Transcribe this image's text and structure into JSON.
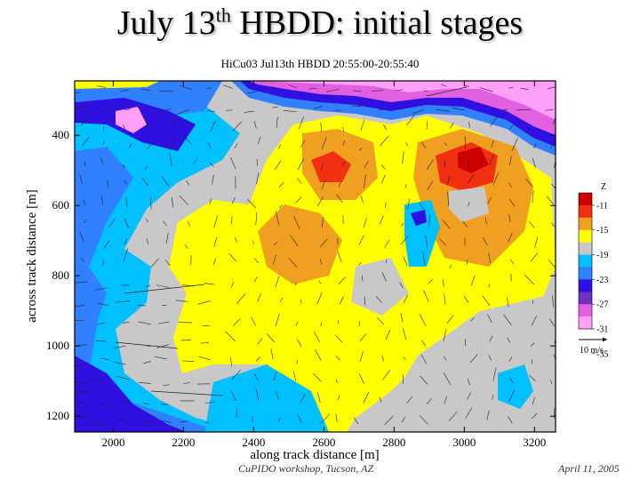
{
  "slide": {
    "title_main": "July 13",
    "title_sup": "th",
    "title_rest": " HBDD: initial stages"
  },
  "footer": {
    "left": "CuPIDO workshop, Tucson, AZ",
    "right": "April 11, 2005"
  },
  "chart_data": {
    "type": "heatmap",
    "title": "HiCu03 Jul13th HBDD 20:55:00-20:55:40",
    "xlabel": "along track distance [m]",
    "ylabel": "across track distance [m]",
    "xlim": [
      1890,
      3260
    ],
    "ylim": [
      1245,
      245
    ],
    "x_ticks": [
      "2000",
      "2200",
      "2400",
      "2600",
      "2800",
      "3000",
      "3200"
    ],
    "y_ticks": [
      "400",
      "600",
      "800",
      "1000",
      "1200"
    ],
    "colorbar": {
      "label": "Z",
      "levels": [
        "-11",
        "-15",
        "-19",
        "-23",
        "-27",
        "-31",
        "-35"
      ],
      "colors": [
        "#cc0000",
        "#f03010",
        "#f0a020",
        "#ffff00",
        "#c8c8c8",
        "#00c0ff",
        "#3080ff",
        "#3010e0",
        "#7030c0",
        "#e060e0",
        "#ff9ff8"
      ]
    },
    "vector_reference": "10 m/s",
    "grid": false,
    "legend_placement": "right"
  }
}
